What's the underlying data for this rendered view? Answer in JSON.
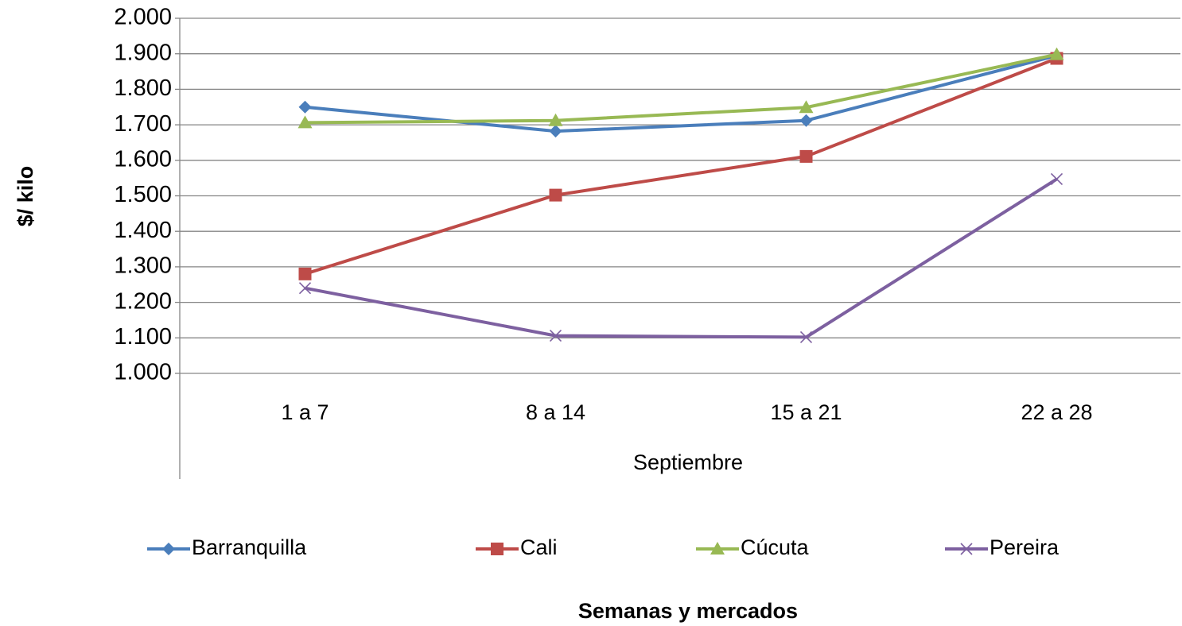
{
  "chart_data": {
    "type": "line",
    "categories": [
      "1 a 7",
      "8 a 14",
      "15 a 21",
      "22 a 28"
    ],
    "x_axis_label": "Septiembre",
    "y_axis_label": "$/ kilo",
    "legend_title": "Semanas y mercados",
    "series": [
      {
        "name": "Barranquilla",
        "color": "#4a7ebb",
        "marker": "diamond",
        "values": [
          1750,
          1682,
          1712,
          1895
        ]
      },
      {
        "name": "Cali",
        "color": "#be4b48",
        "marker": "square",
        "values": [
          1280,
          1502,
          1611,
          1887
        ]
      },
      {
        "name": "Cúcuta",
        "color": "#98b954",
        "marker": "triangle",
        "values": [
          1706,
          1712,
          1749,
          1898
        ]
      },
      {
        "name": "Pereira",
        "color": "#7d60a0",
        "marker": "x",
        "values": [
          1240,
          1106,
          1102,
          1547
        ]
      }
    ],
    "ylim": [
      1000,
      2000
    ],
    "yticks": [
      {
        "value": 1000,
        "label": "1.000"
      },
      {
        "value": 1100,
        "label": "1.100"
      },
      {
        "value": 1200,
        "label": "1.200"
      },
      {
        "value": 1300,
        "label": "1.300"
      },
      {
        "value": 1400,
        "label": "1.400"
      },
      {
        "value": 1500,
        "label": "1.500"
      },
      {
        "value": 1600,
        "label": "1.600"
      },
      {
        "value": 1700,
        "label": "1.700"
      },
      {
        "value": 1800,
        "label": "1.800"
      },
      {
        "value": 1900,
        "label": "1.900"
      },
      {
        "value": 2000,
        "label": "2.000"
      }
    ],
    "grid": true,
    "legend": "bottom"
  }
}
